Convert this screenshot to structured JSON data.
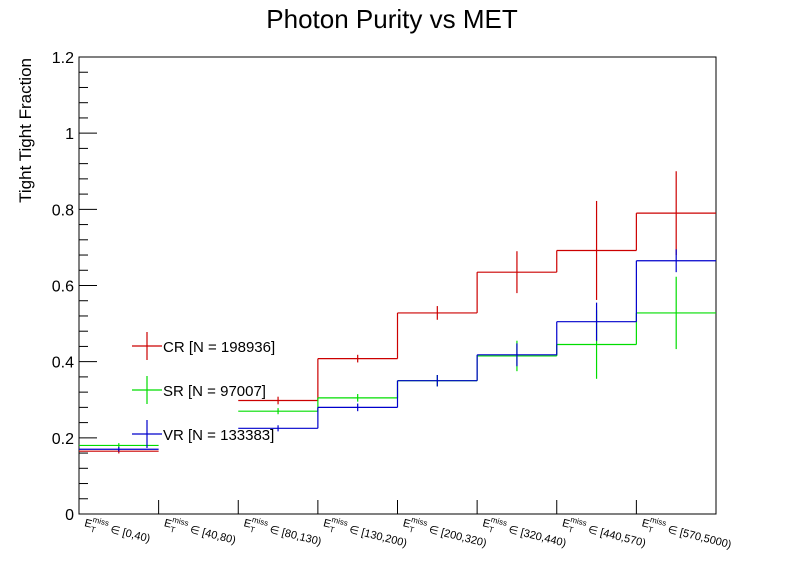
{
  "chart_data": {
    "type": "step",
    "title": "Photon Purity vs MET",
    "xlabel": "",
    "ylabel": "Tight Tight Fraction",
    "ylim": [
      0,
      1.2
    ],
    "y_ticks": [
      "0",
      "0.2",
      "0.4",
      "0.6",
      "0.8",
      "1",
      "1.2"
    ],
    "y_tick_values": [
      0,
      0.2,
      0.4,
      0.6,
      0.8,
      1.0,
      1.2
    ],
    "categories": [
      "[0,40)",
      "[40,80)",
      "[80,130)",
      "[130,200)",
      "[200,320)",
      "[320,440)",
      "[440,570)",
      "[570,5000)"
    ],
    "category_prefix": "E",
    "category_prefix_sub": "T",
    "category_prefix_sup": "miss",
    "category_relation": "∈",
    "legend_position": "left-center",
    "series": [
      {
        "name": "CR [N = 198936]",
        "color": "#cc0000",
        "values": [
          0.165,
          null,
          0.298,
          0.408,
          0.528,
          0.635,
          0.692,
          0.79
        ],
        "errors": [
          0.006,
          null,
          0.01,
          0.01,
          0.018,
          0.055,
          0.13,
          0.11
        ]
      },
      {
        "name": "SR [N = 97007]",
        "color": "#00dd00",
        "values": [
          0.18,
          null,
          0.27,
          0.305,
          0.35,
          0.415,
          0.445,
          0.528
        ],
        "errors": [
          0.006,
          null,
          0.008,
          0.01,
          0.015,
          0.04,
          0.09,
          0.095
        ]
      },
      {
        "name": "VR [N = 133383]",
        "color": "#0000cc",
        "values": [
          0.17,
          null,
          0.225,
          0.28,
          0.35,
          0.418,
          0.505,
          0.665
        ],
        "errors": [
          0.006,
          null,
          0.008,
          0.01,
          0.015,
          0.03,
          0.05,
          0.03
        ]
      }
    ]
  }
}
